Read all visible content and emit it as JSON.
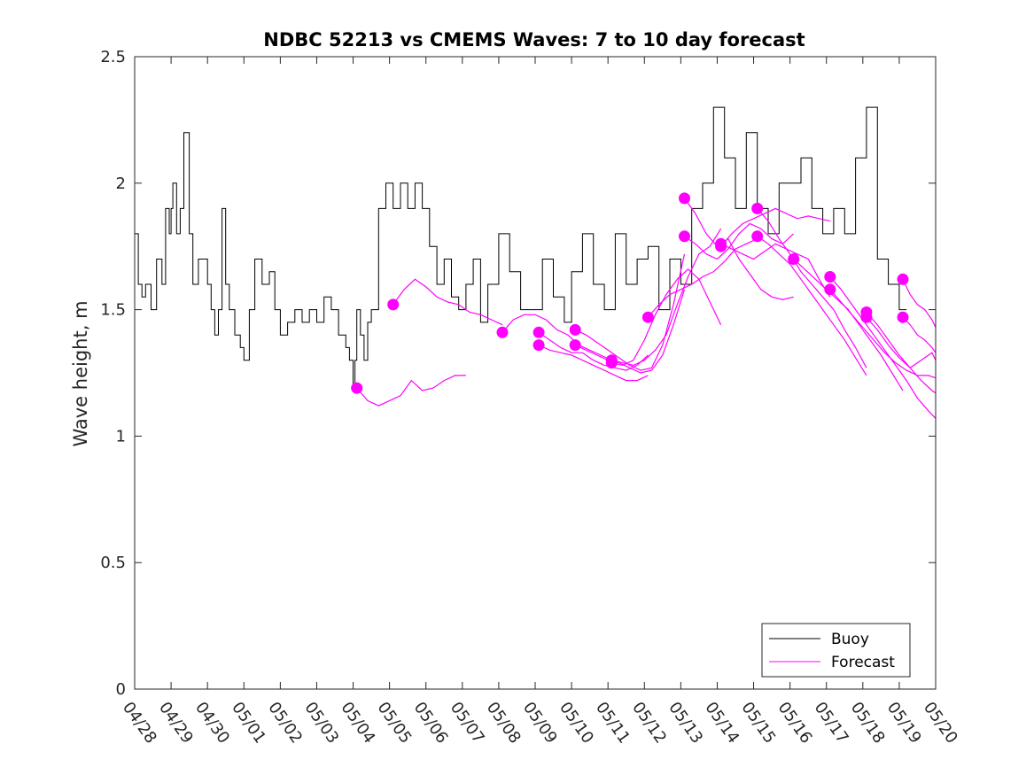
{
  "chart_data": {
    "type": "line",
    "title": "NDBC 52213 vs CMEMS Waves: 7 to 10 day forecast",
    "xlabel": "",
    "ylabel": "Wave height, m",
    "xlim": [
      "04/28",
      "05/20"
    ],
    "ylim": [
      0,
      2.5
    ],
    "x_tick_labels": [
      "04/28",
      "04/29",
      "04/30",
      "05/01",
      "05/02",
      "05/03",
      "05/04",
      "05/05",
      "05/06",
      "05/07",
      "05/08",
      "05/09",
      "05/10",
      "05/11",
      "05/12",
      "05/13",
      "05/14",
      "05/15",
      "05/16",
      "05/17",
      "05/18",
      "05/19",
      "05/20"
    ],
    "y_ticks": [
      0,
      0.5,
      1,
      1.5,
      2,
      2.5
    ],
    "y_tick_labels": [
      "0",
      "0.5",
      "1",
      "1.5",
      "2",
      "2.5"
    ],
    "grid": false,
    "legend_position": "bottom-right",
    "colors": {
      "buoy": "#000000",
      "forecast": "#ff00ff"
    },
    "series": [
      {
        "name": "Buoy",
        "x_days": [
          0,
          0.1,
          0.2,
          0.3,
          0.45,
          0.6,
          0.75,
          0.85,
          0.95,
          1.0,
          1.05,
          1.15,
          1.25,
          1.35,
          1.5,
          1.6,
          1.75,
          1.9,
          2.0,
          2.1,
          2.2,
          2.3,
          2.4,
          2.5,
          2.6,
          2.75,
          2.9,
          3.0,
          3.15,
          3.3,
          3.5,
          3.7,
          3.85,
          4.0,
          4.2,
          4.4,
          4.6,
          4.8,
          5.0,
          5.2,
          5.4,
          5.6,
          5.8,
          5.9,
          6.0,
          6.05,
          6.1,
          6.2,
          6.3,
          6.4,
          6.5,
          6.7,
          6.9,
          7.1,
          7.3,
          7.5,
          7.7,
          7.9,
          8.1,
          8.3,
          8.5,
          8.7,
          8.9,
          9.1,
          9.3,
          9.5,
          9.7,
          10.0,
          10.3,
          10.6,
          10.9,
          11.2,
          11.5,
          11.8,
          12.0,
          12.3,
          12.6,
          12.9,
          13.2,
          13.5,
          13.8,
          14.1,
          14.4,
          14.7,
          15.0,
          15.3,
          15.6,
          15.9,
          16.2,
          16.5,
          16.8,
          17.1,
          17.4,
          17.7,
          18.0,
          18.3,
          18.6,
          18.9,
          19.2,
          19.5,
          19.8,
          20.1,
          20.4,
          20.7,
          21.0,
          21.2
        ],
        "values": [
          1.8,
          1.6,
          1.55,
          1.6,
          1.5,
          1.7,
          1.6,
          1.9,
          1.8,
          1.9,
          2.0,
          1.8,
          1.9,
          2.2,
          1.8,
          1.6,
          1.7,
          1.7,
          1.6,
          1.5,
          1.4,
          1.5,
          1.9,
          1.6,
          1.5,
          1.4,
          1.35,
          1.3,
          1.5,
          1.7,
          1.6,
          1.65,
          1.5,
          1.4,
          1.45,
          1.5,
          1.45,
          1.5,
          1.45,
          1.55,
          1.5,
          1.4,
          1.35,
          1.3,
          1.2,
          1.3,
          1.5,
          1.4,
          1.3,
          1.45,
          1.5,
          1.9,
          2.0,
          1.9,
          2.0,
          1.9,
          2.0,
          1.9,
          1.75,
          1.6,
          1.7,
          1.55,
          1.5,
          1.6,
          1.7,
          1.45,
          1.6,
          1.8,
          1.65,
          1.5,
          1.5,
          1.7,
          1.55,
          1.45,
          1.65,
          1.8,
          1.6,
          1.5,
          1.8,
          1.6,
          1.7,
          1.75,
          1.5,
          1.7,
          1.6,
          1.9,
          2.0,
          2.3,
          2.1,
          1.9,
          2.2,
          1.9,
          1.8,
          2.0,
          2.0,
          2.1,
          1.9,
          1.8,
          1.9,
          1.8,
          2.1,
          2.3,
          1.7,
          1.6,
          1.5,
          1.5
        ]
      },
      {
        "name": "Forecast",
        "runs": [
          {
            "x_days": [
              6.1,
              6.4,
              6.7,
              7.0,
              7.3,
              7.6,
              7.9,
              8.2,
              8.5,
              8.8,
              9.1
            ],
            "values": [
              1.19,
              1.14,
              1.12,
              1.14,
              1.16,
              1.22,
              1.18,
              1.19,
              1.22,
              1.24,
              1.24
            ]
          },
          {
            "x_days": [
              7.1,
              7.4,
              7.7,
              8.0,
              8.3,
              8.6,
              8.9,
              9.2,
              9.5,
              9.8,
              10.1
            ],
            "values": [
              1.52,
              1.58,
              1.62,
              1.59,
              1.55,
              1.53,
              1.52,
              1.49,
              1.48,
              1.46,
              1.44
            ]
          },
          {
            "x_days": [
              10.1,
              10.4,
              10.7,
              11.0,
              11.3,
              11.6,
              11.9,
              12.2,
              12.5,
              12.8,
              13.1
            ],
            "values": [
              1.41,
              1.46,
              1.48,
              1.48,
              1.46,
              1.42,
              1.4,
              1.36,
              1.34,
              1.32,
              1.3
            ]
          },
          {
            "x_days": [
              11.1,
              11.4,
              11.7,
              12.0,
              12.3,
              12.6,
              12.9,
              13.2,
              13.5,
              13.8,
              14.1
            ],
            "values": [
              1.41,
              1.38,
              1.35,
              1.33,
              1.33,
              1.3,
              1.28,
              1.27,
              1.26,
              1.28,
              1.32
            ]
          },
          {
            "x_days": [
              11.1,
              11.4,
              11.7,
              12.0,
              12.3,
              12.6,
              12.9,
              13.2,
              13.5,
              13.8,
              14.1
            ],
            "values": [
              1.36,
              1.34,
              1.33,
              1.32,
              1.3,
              1.28,
              1.26,
              1.24,
              1.22,
              1.22,
              1.24
            ]
          },
          {
            "x_days": [
              12.1,
              12.4,
              12.7,
              13.0,
              13.3,
              13.6,
              13.9,
              14.2,
              14.5,
              14.8,
              15.1
            ],
            "values": [
              1.42,
              1.4,
              1.37,
              1.34,
              1.31,
              1.28,
              1.26,
              1.27,
              1.36,
              1.52,
              1.72
            ]
          },
          {
            "x_days": [
              12.1,
              12.4,
              12.7,
              13.0,
              13.3,
              13.6,
              13.9,
              14.2,
              14.5,
              14.8,
              15.1
            ],
            "values": [
              1.36,
              1.34,
              1.32,
              1.3,
              1.29,
              1.27,
              1.25,
              1.26,
              1.32,
              1.44,
              1.58
            ]
          },
          {
            "x_days": [
              13.1,
              13.4,
              13.7,
              14.0,
              14.3,
              14.6,
              14.9,
              15.2,
              15.5,
              15.8,
              16.1
            ],
            "values": [
              1.3,
              1.29,
              1.28,
              1.3,
              1.34,
              1.4,
              1.52,
              1.63,
              1.72,
              1.75,
              1.82
            ]
          },
          {
            "x_days": [
              13.1,
              13.4,
              13.7,
              14.0,
              14.3,
              14.6,
              14.9,
              15.2,
              15.5,
              15.8,
              16.1
            ],
            "values": [
              1.29,
              1.28,
              1.3,
              1.38,
              1.48,
              1.56,
              1.62,
              1.66,
              1.62,
              1.53,
              1.44
            ]
          },
          {
            "x_days": [
              14.1,
              14.4,
              14.7,
              15.0,
              15.3,
              15.6,
              15.9,
              16.2,
              16.5,
              16.8,
              17.1
            ],
            "values": [
              1.47,
              1.52,
              1.56,
              1.58,
              1.6,
              1.63,
              1.65,
              1.69,
              1.74,
              1.76,
              1.78
            ]
          },
          {
            "x_days": [
              15.1,
              15.4,
              15.7,
              16.0,
              16.3,
              16.6,
              16.9,
              17.2,
              17.5,
              17.8,
              18.1
            ],
            "values": [
              1.94,
              1.88,
              1.8,
              1.75,
              1.78,
              1.7,
              1.64,
              1.58,
              1.55,
              1.54,
              1.55
            ]
          },
          {
            "x_days": [
              15.1,
              15.4,
              15.7,
              16.0,
              16.3,
              16.6,
              16.9,
              17.2,
              17.5,
              17.8,
              18.1
            ],
            "values": [
              1.79,
              1.76,
              1.72,
              1.7,
              1.74,
              1.8,
              1.84,
              1.82,
              1.78,
              1.76,
              1.8
            ]
          },
          {
            "x_days": [
              16.1,
              16.4,
              16.7,
              17.0,
              17.3,
              17.6,
              17.9,
              18.2,
              18.5,
              18.8,
              19.1
            ],
            "values": [
              1.76,
              1.74,
              1.72,
              1.7,
              1.73,
              1.76,
              1.74,
              1.72,
              1.7,
              1.62,
              1.55
            ]
          },
          {
            "x_days": [
              16.1,
              16.4,
              16.7,
              17.0,
              17.3,
              17.6,
              17.9,
              18.2,
              18.5,
              18.8,
              19.1
            ],
            "values": [
              1.75,
              1.8,
              1.84,
              1.86,
              1.88,
              1.9,
              1.88,
              1.86,
              1.87,
              1.86,
              1.85
            ]
          },
          {
            "x_days": [
              17.1,
              17.4,
              17.7,
              18.0,
              18.3,
              18.6,
              18.9,
              19.2,
              19.5,
              19.8,
              20.1
            ],
            "values": [
              1.9,
              1.85,
              1.78,
              1.72,
              1.65,
              1.6,
              1.55,
              1.5,
              1.42,
              1.35,
              1.27
            ]
          },
          {
            "x_days": [
              17.1,
              17.4,
              17.7,
              18.0,
              18.3,
              18.6,
              18.9,
              19.2,
              19.5,
              19.8,
              20.1
            ],
            "values": [
              1.79,
              1.76,
              1.72,
              1.68,
              1.62,
              1.56,
              1.5,
              1.44,
              1.38,
              1.31,
              1.24
            ]
          },
          {
            "x_days": [
              18.1,
              18.4,
              18.7,
              19.0,
              19.3,
              19.6,
              19.9,
              20.2,
              20.5,
              20.8,
              21.1
            ],
            "values": [
              1.7,
              1.66,
              1.62,
              1.58,
              1.54,
              1.5,
              1.44,
              1.38,
              1.32,
              1.25,
              1.18
            ]
          },
          {
            "x_days": [
              19.1,
              19.4,
              19.7,
              20.0,
              20.3,
              20.6,
              20.9,
              21.2,
              21.5,
              21.8,
              22.0
            ],
            "values": [
              1.63,
              1.58,
              1.52,
              1.46,
              1.4,
              1.34,
              1.28,
              1.22,
              1.15,
              1.1,
              1.07
            ]
          },
          {
            "x_days": [
              19.1,
              19.4,
              19.7,
              20.0,
              20.3,
              20.6,
              20.9,
              21.2,
              21.5,
              21.8,
              22.0
            ],
            "values": [
              1.58,
              1.53,
              1.48,
              1.43,
              1.38,
              1.33,
              1.29,
              1.26,
              1.24,
              1.24,
              1.23
            ]
          },
          {
            "x_days": [
              20.1,
              20.4,
              20.7,
              21.0,
              21.3,
              21.6,
              21.9,
              22.0
            ],
            "values": [
              1.49,
              1.44,
              1.38,
              1.32,
              1.27,
              1.22,
              1.18,
              1.17
            ]
          },
          {
            "x_days": [
              20.1,
              20.4,
              20.7,
              21.0,
              21.3,
              21.6,
              21.9,
              22.0
            ],
            "values": [
              1.47,
              1.42,
              1.36,
              1.31,
              1.27,
              1.3,
              1.33,
              1.3
            ]
          },
          {
            "x_days": [
              21.1,
              21.3,
              21.5,
              21.7,
              21.9,
              22.0
            ],
            "values": [
              1.62,
              1.56,
              1.52,
              1.5,
              1.46,
              1.43
            ]
          },
          {
            "x_days": [
              21.1,
              21.3,
              21.5,
              21.7,
              21.9,
              22.0
            ],
            "values": [
              1.47,
              1.44,
              1.4,
              1.38,
              1.35,
              1.33
            ]
          }
        ]
      }
    ],
    "legend": [
      "Buoy",
      "Forecast"
    ]
  }
}
